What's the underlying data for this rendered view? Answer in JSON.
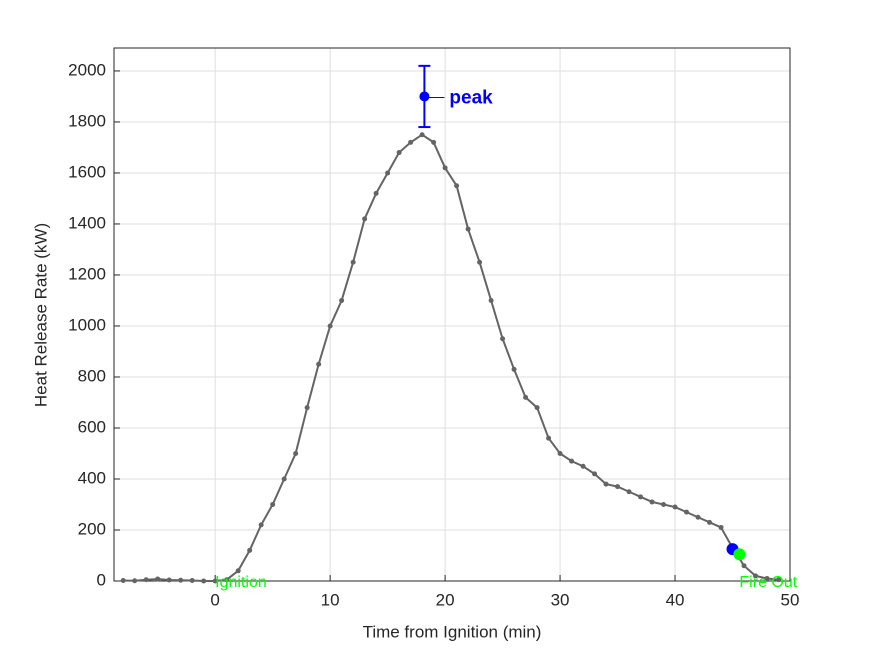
{
  "chart_data": {
    "type": "line",
    "xlabel": "Time from Ignition (min)",
    "ylabel": "Heat Release Rate (kW)",
    "xlim": [
      -8.8,
      50
    ],
    "ylim": [
      0,
      2090
    ],
    "xticks": [
      0,
      10,
      20,
      30,
      40,
      50
    ],
    "yticks": [
      0,
      200,
      400,
      600,
      800,
      1000,
      1200,
      1400,
      1600,
      1800,
      2000
    ],
    "grid": true,
    "x": [
      -8,
      -7,
      -6,
      -5,
      -4,
      -3,
      -2,
      -1,
      0,
      1,
      2,
      3,
      4,
      5,
      6,
      7,
      8,
      9,
      10,
      11,
      12,
      13,
      14,
      15,
      16,
      17,
      18,
      19,
      20,
      21,
      22,
      23,
      24,
      25,
      26,
      27,
      28,
      29,
      30,
      31,
      32,
      33,
      34,
      35,
      36,
      37,
      38,
      39,
      40,
      41,
      42,
      43,
      44,
      45,
      46,
      47,
      48,
      49
    ],
    "series": [
      {
        "color": "#646464",
        "values": [
          2,
          1,
          5,
          8,
          4,
          3,
          2,
          0,
          0,
          5,
          40,
          120,
          220,
          300,
          400,
          500,
          680,
          850,
          1000,
          1100,
          1250,
          1420,
          1520,
          1600,
          1680,
          1720,
          1750,
          1720,
          1620,
          1550,
          1380,
          1250,
          1100,
          950,
          830,
          720,
          680,
          560,
          500,
          470,
          450,
          420,
          380,
          370,
          350,
          330,
          310,
          300,
          290,
          270,
          250,
          230,
          210,
          130,
          60,
          20,
          10,
          5
        ]
      }
    ],
    "peak": {
      "x": 18.2,
      "y": 1900,
      "error": 120,
      "label": "peak",
      "color": "#0000ff"
    },
    "points": [
      {
        "x": 45,
        "y": 125,
        "color": "#0000ff"
      },
      {
        "x": 45.6,
        "y": 105,
        "color": "#00ff00"
      }
    ],
    "annotations": [
      {
        "x": 0,
        "y": 0,
        "label": "Ignition",
        "color": "#00ff00"
      },
      {
        "x": 45.6,
        "y": 0,
        "label": "Fire Out",
        "color": "#00ff00"
      }
    ]
  }
}
